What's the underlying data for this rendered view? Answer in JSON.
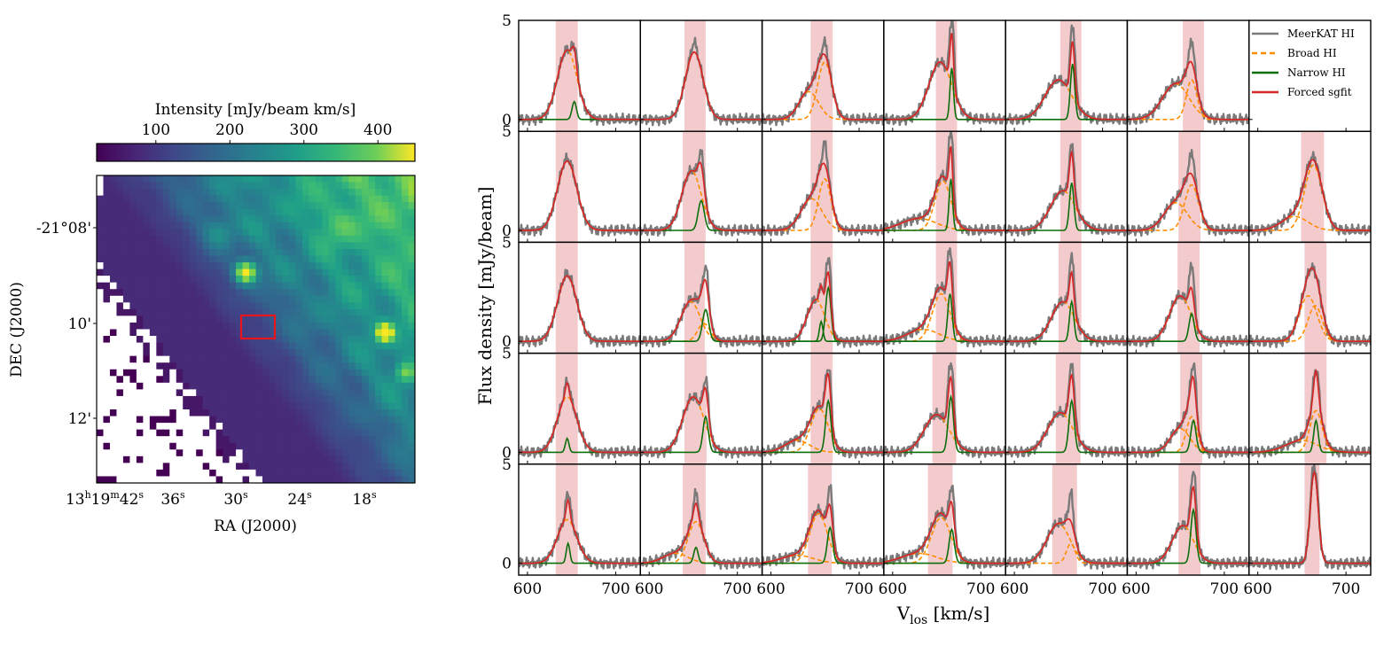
{
  "chart_data": [
    {
      "type": "heatmap",
      "colorbar": {
        "label": "Intensity [mJy/beam km/s]",
        "vmin": 20,
        "vmax": 450,
        "ticks": [
          100,
          200,
          300,
          400
        ],
        "colormap": "viridis"
      },
      "xlabel": "RA (J2000)",
      "ylabel": "DEC (J2000)",
      "ra_ticks": [
        {
          "h": "13",
          "hs": "h",
          "m": "19",
          "ms": "m",
          "s": "42",
          "ss": "s"
        },
        {
          "s": "36",
          "ss": "s"
        },
        {
          "s": "30",
          "ss": "s"
        },
        {
          "s": "24",
          "ss": "s"
        },
        {
          "s": "18",
          "ss": "s"
        }
      ],
      "dec_ticks": [
        "-21°08'",
        "10'",
        "12'"
      ],
      "highlight_box": {
        "color": "#e8161c",
        "description": "region of spectra grid"
      },
      "blank_color": "#ffffff"
    },
    {
      "type": "line",
      "layout": {
        "rows": 5,
        "cols": 7
      },
      "xlabel": "V",
      "xlabel_sub": "los",
      "xlabel_unit": " [km/s]",
      "ylabel": "Flux density [mJy/beam]",
      "xlim": [
        590,
        728
      ],
      "ylim": [
        -0.6,
        5
      ],
      "x_tick_labels": [
        "600",
        "700"
      ],
      "x_ticks": [
        600,
        700
      ],
      "y_tick_labels": [
        "0",
        "5"
      ],
      "y_ticks": [
        0,
        5
      ],
      "legend": [
        {
          "label": "MeerKAT HI",
          "color": "#7a7a7a",
          "style": "solid"
        },
        {
          "label": "Broad HI",
          "color": "#ff8c00",
          "style": "dashed"
        },
        {
          "label": "Narrow HI",
          "color": "#0a6e0a",
          "style": "solid"
        },
        {
          "label": "Forced sgfit",
          "color": "#d62728",
          "style": "solid"
        }
      ],
      "legend_location": "top-right of grid",
      "band_color": "#f2c2c4",
      "panels": [
        [
          {
            "broad": [
              {
                "a": 3.5,
                "mu": 645,
                "s": 11
              }
            ],
            "narrow": [
              {
                "a": 0.9,
                "mu": 653,
                "s": 2.5
              }
            ],
            "peak": 3.7,
            "band": [
              632,
              657
            ]
          },
          {
            "broad": [
              {
                "a": 3.4,
                "mu": 651,
                "s": 10
              }
            ],
            "narrow": [],
            "peak": 3.9,
            "band": [
              640,
              664
            ]
          },
          {
            "broad": [
              {
                "a": 1.4,
                "mu": 643,
                "s": 11
              },
              {
                "a": 2.9,
                "mu": 661,
                "s": 8
              }
            ],
            "narrow": [],
            "peak": 3.9,
            "band": [
              645,
              670
            ]
          },
          {
            "broad": [
              {
                "a": 2.9,
                "mu": 654,
                "s": 13
              }
            ],
            "narrow": [
              {
                "a": 2.6,
                "mu": 667,
                "s": 2
              }
            ],
            "peak": 5.0,
            "band": [
              649,
              673
            ]
          },
          {
            "broad": [
              {
                "a": 2.0,
                "mu": 650,
                "s": 15
              }
            ],
            "narrow": [
              {
                "a": 2.8,
                "mu": 666,
                "s": 2.5
              }
            ],
            "peak": 4.6,
            "band": [
              652,
              676
            ]
          },
          {
            "broad": [
              {
                "a": 1.8,
                "mu": 645,
                "s": 15
              },
              {
                "a": 2.0,
                "mu": 663,
                "s": 6
              }
            ],
            "narrow": [],
            "peak": 4.0,
            "band": [
              653,
              677
            ]
          },
          {
            "broad": [],
            "narrow": [],
            "peak": 0,
            "band": null
          }
        ],
        [
          {
            "broad": [
              {
                "a": 3.5,
                "mu": 645,
                "s": 11
              }
            ],
            "narrow": [],
            "peak": 3.6,
            "band": [
              632,
              657
            ]
          },
          {
            "broad": [
              {
                "a": 3.0,
                "mu": 648,
                "s": 11
              }
            ],
            "narrow": [
              {
                "a": 1.5,
                "mu": 659,
                "s": 3.5
              }
            ],
            "peak": 3.9,
            "band": [
              638,
              664
            ]
          },
          {
            "broad": [
              {
                "a": 1.6,
                "mu": 646,
                "s": 12
              },
              {
                "a": 2.6,
                "mu": 661,
                "s": 7
              }
            ],
            "narrow": [],
            "peak": 4.4,
            "band": [
              645,
              670
            ]
          },
          {
            "broad": [
              {
                "a": 0.6,
                "mu": 630,
                "s": 20
              },
              {
                "a": 2.5,
                "mu": 657,
                "s": 9
              }
            ],
            "narrow": [
              {
                "a": 2.6,
                "mu": 666,
                "s": 2
              }
            ],
            "peak": 5.0,
            "band": [
              649,
              673
            ]
          },
          {
            "broad": [
              {
                "a": 2.0,
                "mu": 655,
                "s": 14
              }
            ],
            "narrow": [
              {
                "a": 2.4,
                "mu": 665,
                "s": 2.5
              }
            ],
            "peak": 4.2,
            "band": [
              652,
              676
            ]
          },
          {
            "broad": [
              {
                "a": 1.4,
                "mu": 645,
                "s": 13
              },
              {
                "a": 2.3,
                "mu": 663,
                "s": 8
              }
            ],
            "narrow": [],
            "peak": 4.0,
            "band": [
              648,
              673
            ]
          },
          {
            "broad": [
              {
                "a": 0.7,
                "mu": 642,
                "s": 15
              },
              {
                "a": 3.3,
                "mu": 663,
                "s": 10
              }
            ],
            "narrow": [],
            "peak": 3.7,
            "band": [
              649,
              675
            ]
          }
        ],
        [
          {
            "broad": [
              {
                "a": 3.3,
                "mu": 645,
                "s": 11
              }
            ],
            "narrow": [],
            "peak": 3.4,
            "band": [
              632,
              657
            ]
          },
          {
            "broad": [
              {
                "a": 2.0,
                "mu": 647,
                "s": 11
              },
              {
                "a": 0.9,
                "mu": 662,
                "s": 7
              }
            ],
            "narrow": [
              {
                "a": 1.6,
                "mu": 664,
                "s": 3.5
              }
            ],
            "peak": 3.7,
            "band": [
              640,
              663
            ]
          },
          {
            "broad": [
              {
                "a": 2.1,
                "mu": 651,
                "s": 10
              }
            ],
            "narrow": [
              {
                "a": 1.0,
                "mu": 657,
                "s": 2
              },
              {
                "a": 2.7,
                "mu": 665,
                "s": 3
              }
            ],
            "peak": 4.2,
            "band": [
              645,
              670
            ]
          },
          {
            "broad": [
              {
                "a": 0.6,
                "mu": 635,
                "s": 18
              },
              {
                "a": 2.4,
                "mu": 655,
                "s": 10
              }
            ],
            "narrow": [
              {
                "a": 2.4,
                "mu": 665,
                "s": 2.5
              }
            ],
            "peak": 4.6,
            "band": [
              649,
              673
            ]
          },
          {
            "broad": [
              {
                "a": 2.0,
                "mu": 655,
                "s": 13
              }
            ],
            "narrow": [
              {
                "a": 2.0,
                "mu": 665,
                "s": 2.5
              }
            ],
            "peak": 4.2,
            "band": [
              650,
              676
            ]
          },
          {
            "broad": [
              {
                "a": 2.3,
                "mu": 650,
                "s": 12
              }
            ],
            "narrow": [
              {
                "a": 1.4,
                "mu": 663,
                "s": 3
              }
            ],
            "peak": 3.9,
            "band": [
              647,
              672
            ]
          },
          {
            "broad": [
              {
                "a": 2.3,
                "mu": 657,
                "s": 10
              },
              {
                "a": 1.8,
                "mu": 665,
                "s": 8
              }
            ],
            "narrow": [],
            "peak": 3.3,
            "band": [
              653,
              678
            ]
          }
        ],
        [
          {
            "broad": [
              {
                "a": 2.8,
                "mu": 645,
                "s": 11
              }
            ],
            "narrow": [
              {
                "a": 0.7,
                "mu": 645,
                "s": 2
              }
            ],
            "peak": 3.5,
            "band": [
              632,
              657
            ]
          },
          {
            "broad": [
              {
                "a": 2.8,
                "mu": 650,
                "s": 12
              }
            ],
            "narrow": [
              {
                "a": 1.8,
                "mu": 664,
                "s": 3
              }
            ],
            "peak": 3.6,
            "band": [
              640,
              665
            ]
          },
          {
            "broad": [
              {
                "a": 0.6,
                "mu": 630,
                "s": 14
              },
              {
                "a": 2.2,
                "mu": 655,
                "s": 10
              }
            ],
            "narrow": [
              {
                "a": 2.6,
                "mu": 665,
                "s": 3
              }
            ],
            "peak": 4.2,
            "band": [
              645,
              670
            ]
          },
          {
            "broad": [
              {
                "a": 1.9,
                "mu": 650,
                "s": 14
              }
            ],
            "narrow": [
              {
                "a": 2.8,
                "mu": 666,
                "s": 3
              }
            ],
            "peak": 4.5,
            "band": [
              645,
              672
            ]
          },
          {
            "broad": [
              {
                "a": 2.0,
                "mu": 652,
                "s": 14
              }
            ],
            "narrow": [
              {
                "a": 2.6,
                "mu": 665,
                "s": 3
              }
            ],
            "peak": 4.3,
            "band": [
              647,
              675
            ]
          },
          {
            "broad": [
              {
                "a": 1.2,
                "mu": 650,
                "s": 11
              },
              {
                "a": 1.8,
                "mu": 663,
                "s": 6
              }
            ],
            "narrow": [
              {
                "a": 1.6,
                "mu": 665,
                "s": 3
              }
            ],
            "peak": 4.4,
            "band": [
              650,
              675
            ]
          },
          {
            "broad": [
              {
                "a": 0.6,
                "mu": 650,
                "s": 18
              },
              {
                "a": 2.1,
                "mu": 666,
                "s": 7
              }
            ],
            "narrow": [
              {
                "a": 1.6,
                "mu": 666,
                "s": 2.5
              }
            ],
            "peak": 4.1,
            "band": [
              653,
              678
            ]
          }
        ],
        [
          {
            "broad": [
              {
                "a": 2.2,
                "mu": 645,
                "s": 11
              }
            ],
            "narrow": [
              {
                "a": 1.0,
                "mu": 646,
                "s": 2
              }
            ],
            "peak": 3.5,
            "band": [
              632,
              657
            ]
          },
          {
            "broad": [
              {
                "a": 0.5,
                "mu": 630,
                "s": 14
              },
              {
                "a": 2.1,
                "mu": 653,
                "s": 9
              }
            ],
            "narrow": [
              {
                "a": 0.8,
                "mu": 653,
                "s": 2.5
              }
            ],
            "peak": 3.5,
            "band": [
              638,
              664
            ]
          },
          {
            "broad": [
              {
                "a": 0.4,
                "mu": 630,
                "s": 18
              },
              {
                "a": 2.5,
                "mu": 654,
                "s": 10
              }
            ],
            "narrow": [
              {
                "a": 1.8,
                "mu": 667,
                "s": 3
              }
            ],
            "peak": 3.8,
            "band": [
              642,
              669
            ]
          },
          {
            "broad": [
              {
                "a": 0.5,
                "mu": 630,
                "s": 20
              },
              {
                "a": 2.3,
                "mu": 655,
                "s": 11
              }
            ],
            "narrow": [
              {
                "a": 1.7,
                "mu": 667,
                "s": 3
              }
            ],
            "peak": 3.9,
            "band": [
              640,
              668
            ]
          },
          {
            "broad": [
              {
                "a": 2.0,
                "mu": 650,
                "s": 13
              },
              {
                "a": 1.0,
                "mu": 664,
                "s": 5
              }
            ],
            "narrow": [],
            "peak": 3.6,
            "band": [
              643,
              671
            ]
          },
          {
            "broad": [
              {
                "a": 1.9,
                "mu": 653,
                "s": 12
              }
            ],
            "narrow": [
              {
                "a": 2.7,
                "mu": 665,
                "s": 3
              }
            ],
            "peak": 4.6,
            "band": [
              648,
              673
            ]
          },
          {
            "broad": [],
            "narrow": [
              {
                "a": 4.6,
                "mu": 664,
                "s": 4.5
              }
            ],
            "peak": 4.8,
            "band": [
              653,
              670
            ]
          }
        ]
      ]
    }
  ]
}
